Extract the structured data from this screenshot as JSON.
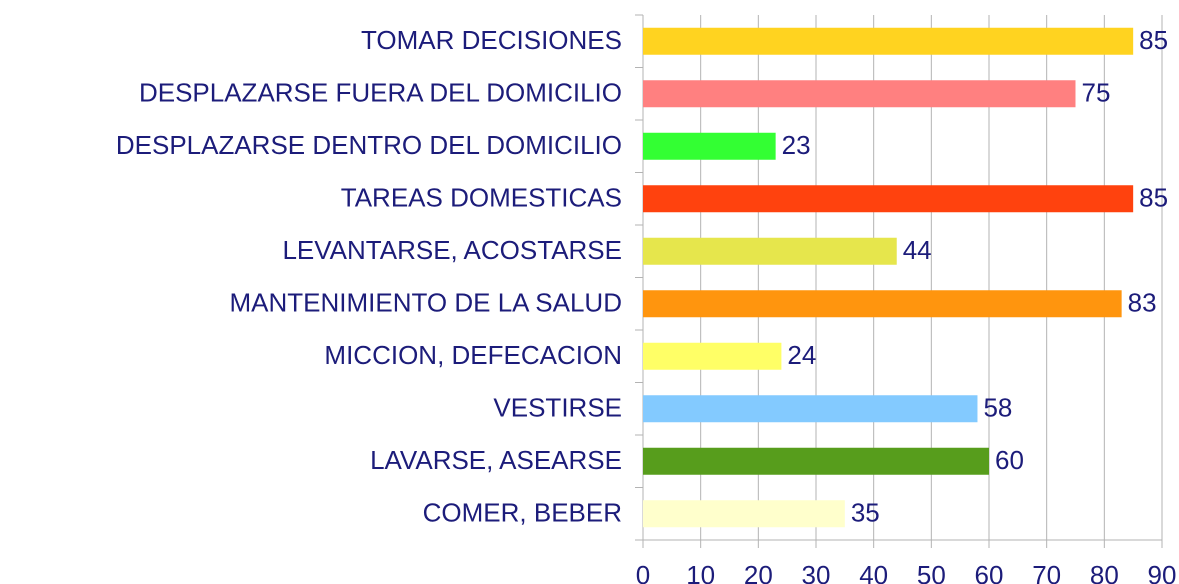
{
  "chart_data": {
    "type": "bar",
    "orientation": "horizontal",
    "categories": [
      "TOMAR DECISIONES",
      "DESPLAZARSE FUERA DEL DOMICILIO",
      "DESPLAZARSE DENTRO DEL DOMICILIO",
      "TAREAS DOMESTICAS",
      "LEVANTARSE, ACOSTARSE",
      "MANTENIMIENTO DE LA SALUD",
      "MICCION, DEFECACION",
      "VESTIRSE",
      "LAVARSE, ASEARSE",
      "COMER, BEBER"
    ],
    "values": [
      85,
      75,
      23,
      85,
      44,
      83,
      24,
      58,
      60,
      35
    ],
    "colors": [
      "#ffd320",
      "#ff8080",
      "#33ff33",
      "#ff420e",
      "#e6e64c",
      "#ff950e",
      "#ffff66",
      "#83caff",
      "#579d1c",
      "#ffffcc"
    ],
    "xlim": [
      0,
      90
    ],
    "xticks": [
      0,
      10,
      20,
      30,
      40,
      50,
      60,
      70,
      80,
      90
    ],
    "grid": true
  }
}
